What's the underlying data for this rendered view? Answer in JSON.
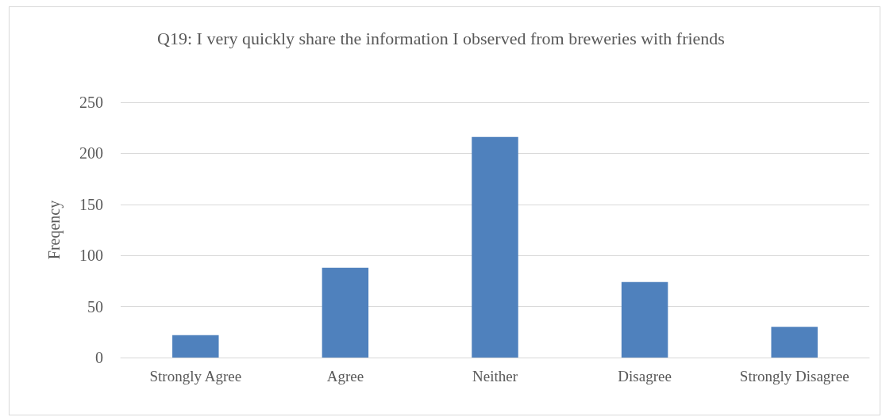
{
  "chart_data": {
    "type": "bar",
    "title": "Q19: I very quickly share the information I observed from breweries with friends",
    "ylabel": "Freqency",
    "categories": [
      "Strongly Agree",
      "Agree",
      "Neither",
      "Disagree",
      "Strongly Disagree"
    ],
    "values": [
      22,
      88,
      216,
      74,
      30
    ],
    "color": "#4f81bd",
    "ylim": [
      0,
      250
    ],
    "yticks": [
      0,
      50,
      100,
      150,
      200,
      250
    ],
    "grid": "y"
  }
}
